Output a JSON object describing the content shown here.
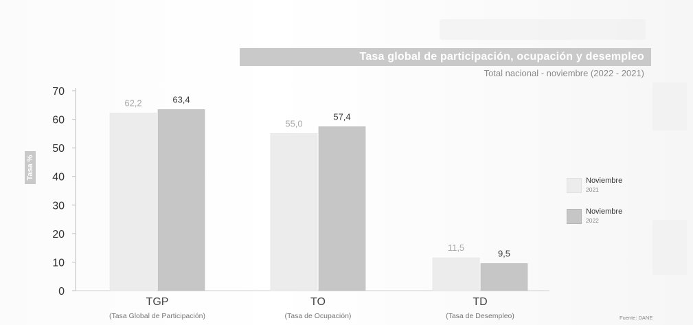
{
  "chart_data": {
    "type": "bar",
    "title": "Tasa global de participación, ocupación y desempleo",
    "subtitle": "Total nacional - noviembre (2022 - 2021)",
    "ylabel": "Tasa %",
    "xlabel": "",
    "ylim": [
      0,
      70
    ],
    "yticks": [
      "0",
      "10",
      "20",
      "30",
      "40",
      "50",
      "60",
      "70"
    ],
    "categories": [
      "TGP",
      "TO",
      "TD"
    ],
    "category_descriptions": [
      "(Tasa Global de Participación)",
      "(Tasa de Ocupación)",
      "(Tasa de Desempleo)"
    ],
    "series": [
      {
        "name": "Noviembre",
        "year": "2021",
        "values": [
          62.2,
          55.0,
          11.5
        ],
        "labels": [
          "62,2",
          "55,0",
          "11,5"
        ],
        "color": "#ececec",
        "label_color": "#a8a8a8"
      },
      {
        "name": "Noviembre",
        "year": "2022",
        "values": [
          63.4,
          57.4,
          9.5
        ],
        "labels": [
          "63,4",
          "57,4",
          "9,5"
        ],
        "color": "#c6c6c6",
        "label_color": "#3a3a3a"
      }
    ],
    "grid": false,
    "legend_position": "right",
    "source": "Fuente: DANE"
  }
}
